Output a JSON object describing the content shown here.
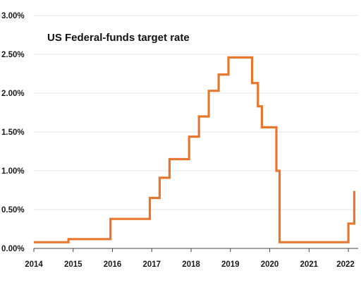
{
  "chart_data": {
    "type": "line",
    "title": "US Federal-funds target rate",
    "xlabel": "",
    "ylabel": "",
    "xlim": [
      2014,
      2022.25
    ],
    "ylim": [
      0,
      3.0
    ],
    "grid": true,
    "legend": "none",
    "colors": {
      "line": "#E8772E",
      "grid": "#e4e4e4",
      "axis": "#444444",
      "text": "#1a1a1a"
    },
    "x_ticks": [
      2014,
      2015,
      2016,
      2017,
      2018,
      2019,
      2020,
      2021,
      2022
    ],
    "x_tick_labels": [
      "2014",
      "2015",
      "2016",
      "2017",
      "2018",
      "2019",
      "2020",
      "2021",
      "2022"
    ],
    "y_ticks": [
      0,
      0.5,
      1.0,
      1.5,
      2.0,
      2.5,
      3.0
    ],
    "y_tick_labels": [
      "0.00%",
      "0.50%",
      "1.00%",
      "1.50%",
      "2.00%",
      "2.50%",
      "3.00%"
    ],
    "series": [
      {
        "step": true,
        "points": [
          [
            2014.0,
            0.08
          ],
          [
            2014.88,
            0.08
          ],
          [
            2014.88,
            0.12
          ],
          [
            2015.95,
            0.12
          ],
          [
            2015.95,
            0.38
          ],
          [
            2016.95,
            0.38
          ],
          [
            2016.95,
            0.65
          ],
          [
            2017.2,
            0.65
          ],
          [
            2017.2,
            0.91
          ],
          [
            2017.45,
            0.91
          ],
          [
            2017.45,
            1.15
          ],
          [
            2017.95,
            1.15
          ],
          [
            2017.95,
            1.44
          ],
          [
            2018.2,
            1.44
          ],
          [
            2018.2,
            1.7
          ],
          [
            2018.45,
            1.7
          ],
          [
            2018.45,
            2.03
          ],
          [
            2018.7,
            2.03
          ],
          [
            2018.7,
            2.24
          ],
          [
            2018.95,
            2.24
          ],
          [
            2018.95,
            2.46
          ],
          [
            2019.55,
            2.46
          ],
          [
            2019.55,
            2.13
          ],
          [
            2019.7,
            2.13
          ],
          [
            2019.7,
            1.83
          ],
          [
            2019.8,
            1.83
          ],
          [
            2019.8,
            1.56
          ],
          [
            2020.17,
            1.56
          ],
          [
            2020.17,
            1.0
          ],
          [
            2020.25,
            1.0
          ],
          [
            2020.25,
            0.08
          ],
          [
            2022.0,
            0.08
          ],
          [
            2022.0,
            0.32
          ],
          [
            2022.15,
            0.32
          ],
          [
            2022.15,
            0.74
          ]
        ]
      }
    ]
  }
}
